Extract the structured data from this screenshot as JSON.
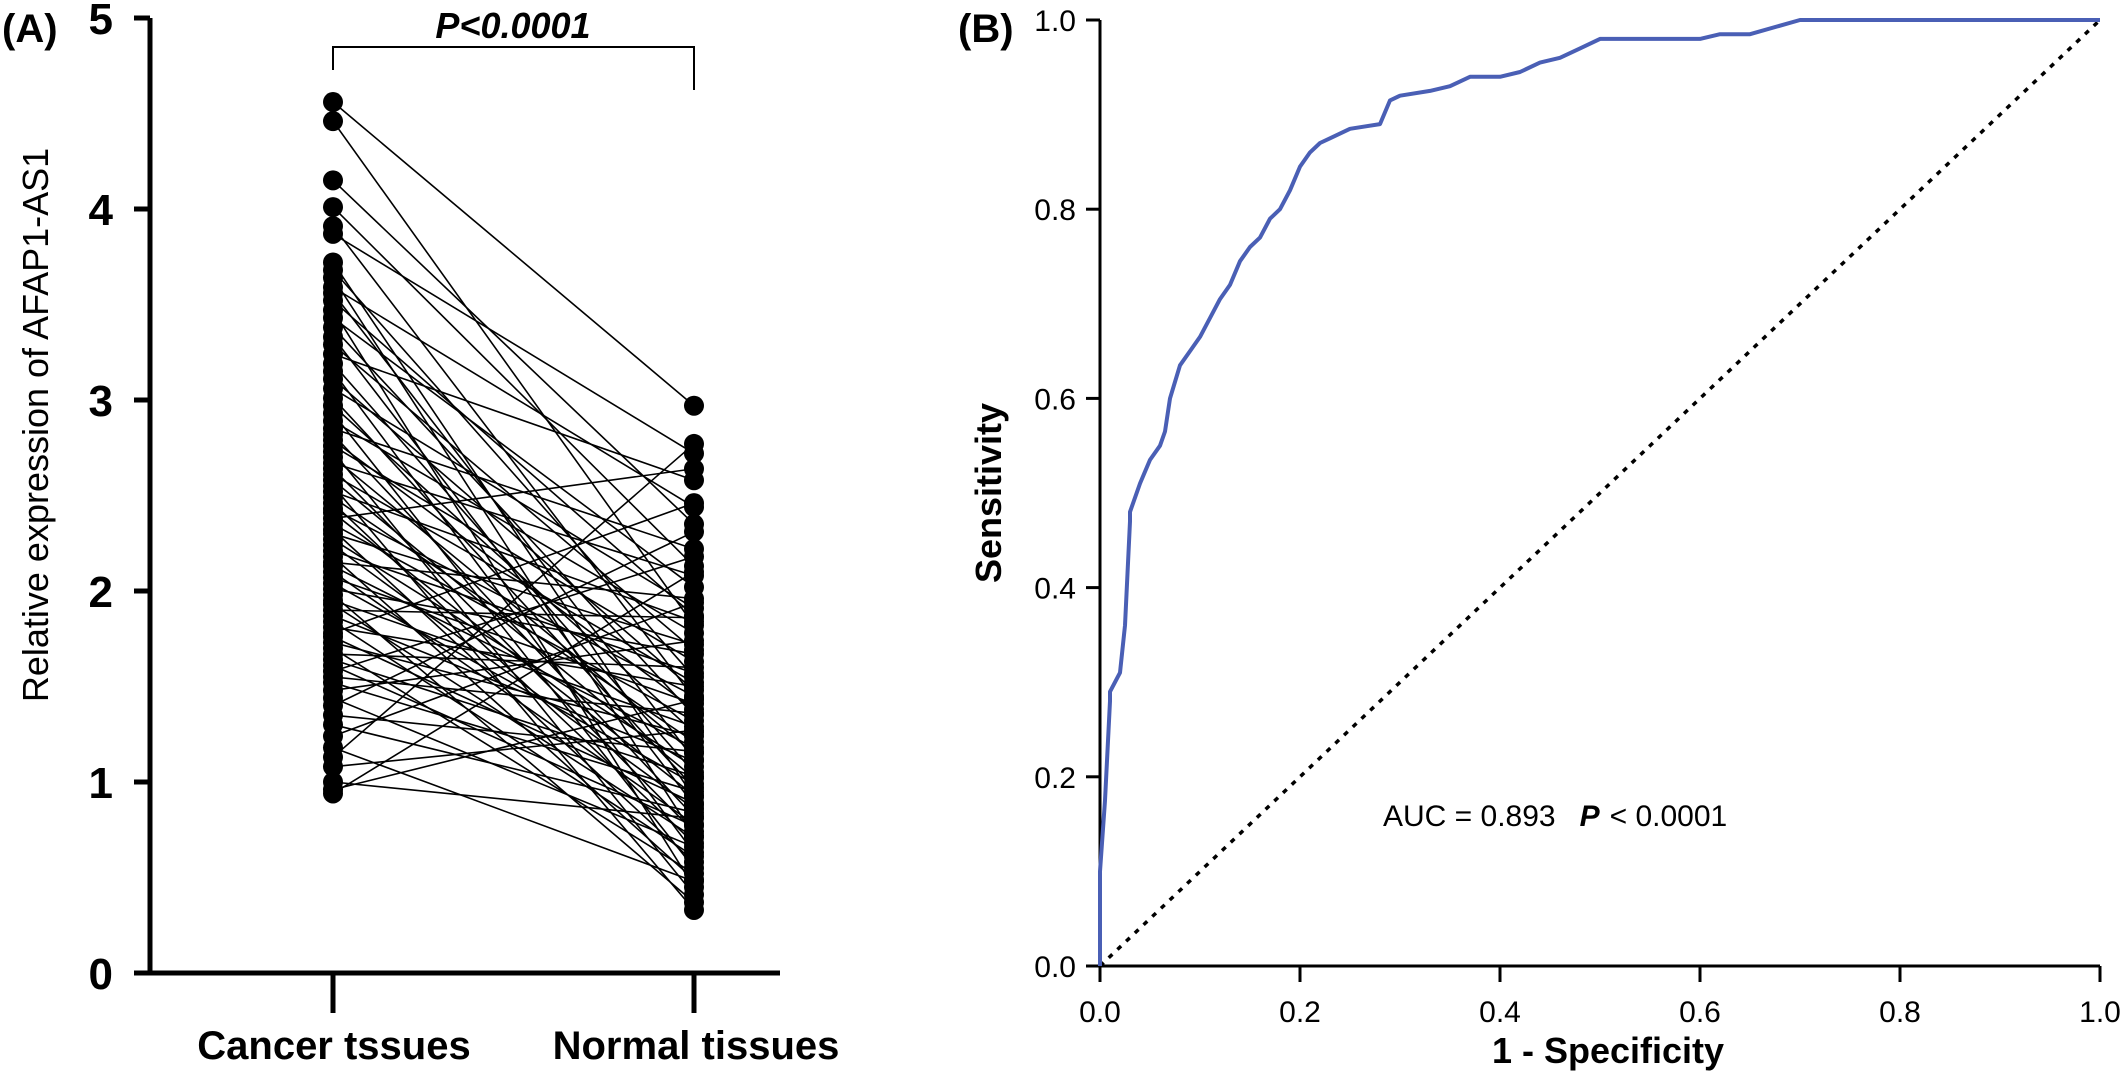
{
  "chart_data": [
    {
      "type": "scatter",
      "panel_label": "(A)",
      "subtype": "paired dot plot",
      "ylabel": "Relative expression of AFAP1-AS1",
      "xlabel": "",
      "categories": [
        "Cancer tssues",
        "Normal tissues"
      ],
      "ylim": [
        0,
        5
      ],
      "yticks": [
        "0",
        "1",
        "2",
        "3",
        "4",
        "5"
      ],
      "significance": "P<0.0001",
      "grid": false,
      "pairs": [
        [
          4.56,
          2.97
        ],
        [
          4.46,
          1.82
        ],
        [
          4.15,
          2.35
        ],
        [
          4.01,
          2.13
        ],
        [
          3.91,
          1.44
        ],
        [
          3.87,
          2.72
        ],
        [
          3.72,
          0.92
        ],
        [
          3.68,
          1.55
        ],
        [
          3.64,
          0.72
        ],
        [
          3.59,
          2.44
        ],
        [
          3.56,
          1.12
        ],
        [
          3.52,
          1.87
        ],
        [
          3.47,
          0.45
        ],
        [
          3.43,
          2.02
        ],
        [
          3.38,
          1.35
        ],
        [
          3.33,
          0.88
        ],
        [
          3.29,
          1.69
        ],
        [
          3.24,
          2.58
        ],
        [
          3.19,
          1.05
        ],
        [
          3.15,
          0.63
        ],
        [
          3.11,
          1.48
        ],
        [
          3.06,
          1.91
        ],
        [
          3.01,
          0.97
        ],
        [
          2.97,
          1.26
        ],
        [
          2.93,
          0.55
        ],
        [
          2.89,
          1.78
        ],
        [
          2.85,
          2.22
        ],
        [
          2.82,
          0.82
        ],
        [
          2.79,
          1.38
        ],
        [
          2.76,
          1.63
        ],
        [
          2.73,
          0.41
        ],
        [
          2.7,
          1.15
        ],
        [
          2.67,
          2.08
        ],
        [
          2.64,
          0.74
        ],
        [
          2.61,
          1.52
        ],
        [
          2.58,
          1.02
        ],
        [
          2.55,
          0.33
        ],
        [
          2.52,
          1.84
        ],
        [
          2.49,
          1.21
        ],
        [
          2.46,
          0.68
        ],
        [
          2.43,
          1.45
        ],
        [
          2.41,
          0.93
        ],
        [
          2.38,
          2.64
        ],
        [
          2.35,
          1.32
        ],
        [
          2.32,
          0.58
        ],
        [
          2.3,
          1.72
        ],
        [
          2.27,
          1.08
        ],
        [
          2.24,
          0.86
        ],
        [
          2.21,
          1.57
        ],
        [
          2.18,
          0.49
        ],
        [
          2.15,
          1.96
        ],
        [
          2.13,
          1.18
        ],
        [
          2.1,
          0.78
        ],
        [
          2.07,
          1.41
        ],
        [
          2.04,
          0.99
        ],
        [
          2.01,
          1.67
        ],
        [
          1.98,
          0.37
        ],
        [
          1.95,
          1.29
        ],
        [
          1.93,
          0.71
        ],
        [
          1.9,
          1.86
        ],
        [
          1.87,
          1.11
        ],
        [
          1.84,
          0.61
        ],
        [
          1.81,
          1.5
        ],
        [
          1.78,
          2.46
        ],
        [
          1.76,
          0.89
        ],
        [
          1.73,
          1.24
        ],
        [
          1.7,
          0.52
        ],
        [
          1.67,
          1.6
        ],
        [
          1.64,
          1.03
        ],
        [
          1.61,
          0.77
        ],
        [
          1.58,
          2.18
        ],
        [
          1.55,
          1.36
        ],
        [
          1.52,
          0.95
        ],
        [
          1.48,
          1.74
        ],
        [
          1.44,
          0.66
        ],
        [
          1.4,
          2.31
        ],
        [
          1.35,
          1.16
        ],
        [
          1.3,
          0.84
        ],
        [
          1.24,
          1.94
        ],
        [
          1.18,
          0.48
        ],
        [
          1.13,
          2.77
        ],
        [
          1.08,
          1.27
        ],
        [
          1.0,
          0.81
        ],
        [
          0.96,
          1.43
        ],
        [
          0.94,
          2.1
        ]
      ]
    },
    {
      "type": "line",
      "panel_label": "(B)",
      "title": "",
      "xlabel": "1 - Specificity",
      "ylabel": "Sensitivity",
      "xlim": [
        0,
        1
      ],
      "ylim": [
        0,
        1
      ],
      "xticks": [
        "0.0",
        "0.2",
        "0.4",
        "0.6",
        "0.8",
        "1.0"
      ],
      "yticks": [
        "0.0",
        "0.2",
        "0.4",
        "0.6",
        "0.8",
        "1.0"
      ],
      "grid": false,
      "annotation": {
        "prefix": "AUC = 0.893",
        "p_symbol": "P",
        "suffix": "< 0.0001"
      },
      "series": [
        {
          "color": "#4a5fb5",
          "x": [
            0,
            0,
            0.005,
            0.01,
            0.01,
            0.02,
            0.025,
            0.03,
            0.03,
            0.04,
            0.05,
            0.06,
            0.065,
            0.07,
            0.08,
            0.09,
            0.1,
            0.11,
            0.12,
            0.13,
            0.14,
            0.15,
            0.16,
            0.17,
            0.18,
            0.19,
            0.2,
            0.21,
            0.22,
            0.23,
            0.25,
            0.28,
            0.29,
            0.3,
            0.33,
            0.35,
            0.37,
            0.4,
            0.42,
            0.44,
            0.46,
            0.48,
            0.5,
            0.55,
            0.6,
            0.62,
            0.65,
            0.7,
            0.75,
            0.8,
            0.9,
            1.0
          ],
          "y": [
            0,
            0.1,
            0.175,
            0.28,
            0.29,
            0.31,
            0.36,
            0.47,
            0.48,
            0.51,
            0.535,
            0.55,
            0.565,
            0.6,
            0.635,
            0.65,
            0.665,
            0.685,
            0.705,
            0.72,
            0.745,
            0.76,
            0.77,
            0.79,
            0.8,
            0.82,
            0.845,
            0.86,
            0.87,
            0.875,
            0.885,
            0.89,
            0.915,
            0.92,
            0.925,
            0.93,
            0.94,
            0.94,
            0.945,
            0.955,
            0.96,
            0.97,
            0.98,
            0.98,
            0.98,
            0.985,
            0.985,
            1.0,
            1.0,
            1.0,
            1.0,
            1.0
          ]
        },
        {
          "style": "dotted",
          "color": "#000000",
          "x": [
            0,
            1
          ],
          "y": [
            0,
            1
          ]
        }
      ]
    }
  ]
}
